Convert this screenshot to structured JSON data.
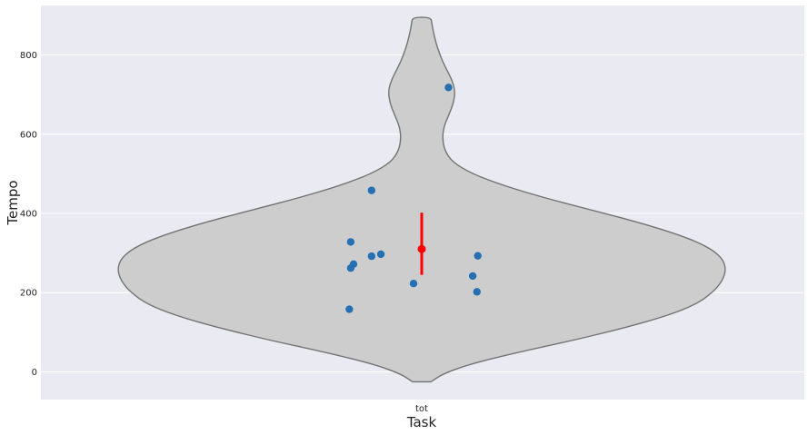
{
  "chart_data": {
    "type": "violin",
    "title": "",
    "xlabel": "Task",
    "ylabel": "Tempo",
    "categories": [
      "tot"
    ],
    "ylim": [
      -70,
      925
    ],
    "yticks": [
      0,
      200,
      400,
      600,
      800
    ],
    "grid": true,
    "violin": {
      "fill_color": "#cdcdcd",
      "edge_color": "#737373",
      "min": -25,
      "max": 895,
      "density_profile": [
        [
          -25,
          0.03
        ],
        [
          -5,
          0.07
        ],
        [
          20,
          0.16
        ],
        [
          50,
          0.32
        ],
        [
          80,
          0.5
        ],
        [
          110,
          0.66
        ],
        [
          140,
          0.8
        ],
        [
          170,
          0.9
        ],
        [
          200,
          0.955
        ],
        [
          230,
          0.988
        ],
        [
          260,
          1.0
        ],
        [
          290,
          0.985
        ],
        [
          320,
          0.93
        ],
        [
          350,
          0.83
        ],
        [
          380,
          0.7
        ],
        [
          410,
          0.55
        ],
        [
          440,
          0.4
        ],
        [
          470,
          0.27
        ],
        [
          500,
          0.165
        ],
        [
          530,
          0.1
        ],
        [
          560,
          0.075
        ],
        [
          590,
          0.068
        ],
        [
          620,
          0.073
        ],
        [
          650,
          0.09
        ],
        [
          680,
          0.105
        ],
        [
          710,
          0.11
        ],
        [
          740,
          0.098
        ],
        [
          770,
          0.077
        ],
        [
          800,
          0.06
        ],
        [
          830,
          0.047
        ],
        [
          860,
          0.038
        ],
        [
          880,
          0.033
        ],
        [
          895,
          0.03
        ]
      ]
    },
    "points": {
      "color": "#2470b3",
      "values": [
        718,
        458,
        328,
        297,
        292,
        272,
        262,
        293,
        242,
        223,
        202,
        158
      ],
      "jitter": [
        0.095,
        -0.178,
        -0.252,
        -0.145,
        -0.178,
        -0.242,
        -0.252,
        0.199,
        0.181,
        -0.029,
        0.196,
        -0.257
      ]
    },
    "mean": 310,
    "ci": [
      245,
      402
    ],
    "mean_color": "#ff0000"
  }
}
